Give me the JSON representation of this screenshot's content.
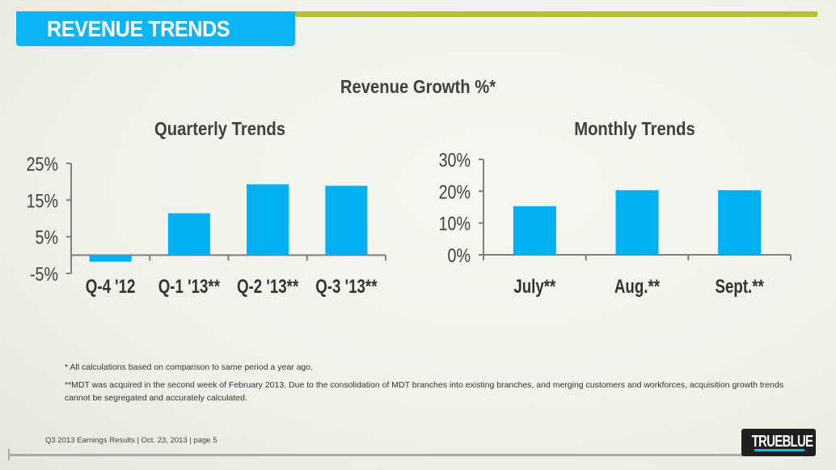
{
  "header": {
    "title": "REVENUE TRENDS"
  },
  "main_title": "Revenue Growth %*",
  "colors": {
    "accent": "#0bb4f4",
    "bar": "#00b0f0",
    "band": "#b5c030",
    "axis": "#7f7f7f"
  },
  "chart_data": [
    {
      "type": "bar",
      "title": "Quarterly Trends",
      "categories": [
        "Q-4 '12",
        "Q-1 '13**",
        "Q-2 '13**",
        "Q-3 '13**"
      ],
      "values": [
        -1.8,
        11.4,
        19.3,
        18.9
      ],
      "yticks": [
        "25%",
        "15%",
        "5%",
        "-5%"
      ],
      "ytick_values": [
        25,
        15,
        5,
        -5
      ],
      "ylim": [
        -5,
        25
      ],
      "xlabel": "",
      "ylabel": "",
      "grid": false,
      "legend": "none"
    },
    {
      "type": "bar",
      "title": "Monthly Trends",
      "categories": [
        "July**",
        "Aug.**",
        "Sept.**"
      ],
      "values": [
        15.3,
        20.3,
        20.3
      ],
      "yticks": [
        "30%",
        "20%",
        "10%",
        "0%"
      ],
      "ytick_values": [
        30,
        20,
        10,
        0
      ],
      "ylim": [
        0,
        30
      ],
      "xlabel": "",
      "ylabel": "",
      "grid": false,
      "legend": "none"
    }
  ],
  "notes": [
    "* All calculations based on comparison to same period a year ago.",
    "**MDT was acquired in the second week of February 2013.  Due to the consolidation of MDT branches into existing branches, and merging  customers and workforces, acquisition growth trends cannot be segregated and  accurately calculated."
  ],
  "footer": {
    "text": "Q3 2013 Earnings Results | Oct. 23, 2013  | page 5",
    "logo": "TRUEBLUE"
  }
}
